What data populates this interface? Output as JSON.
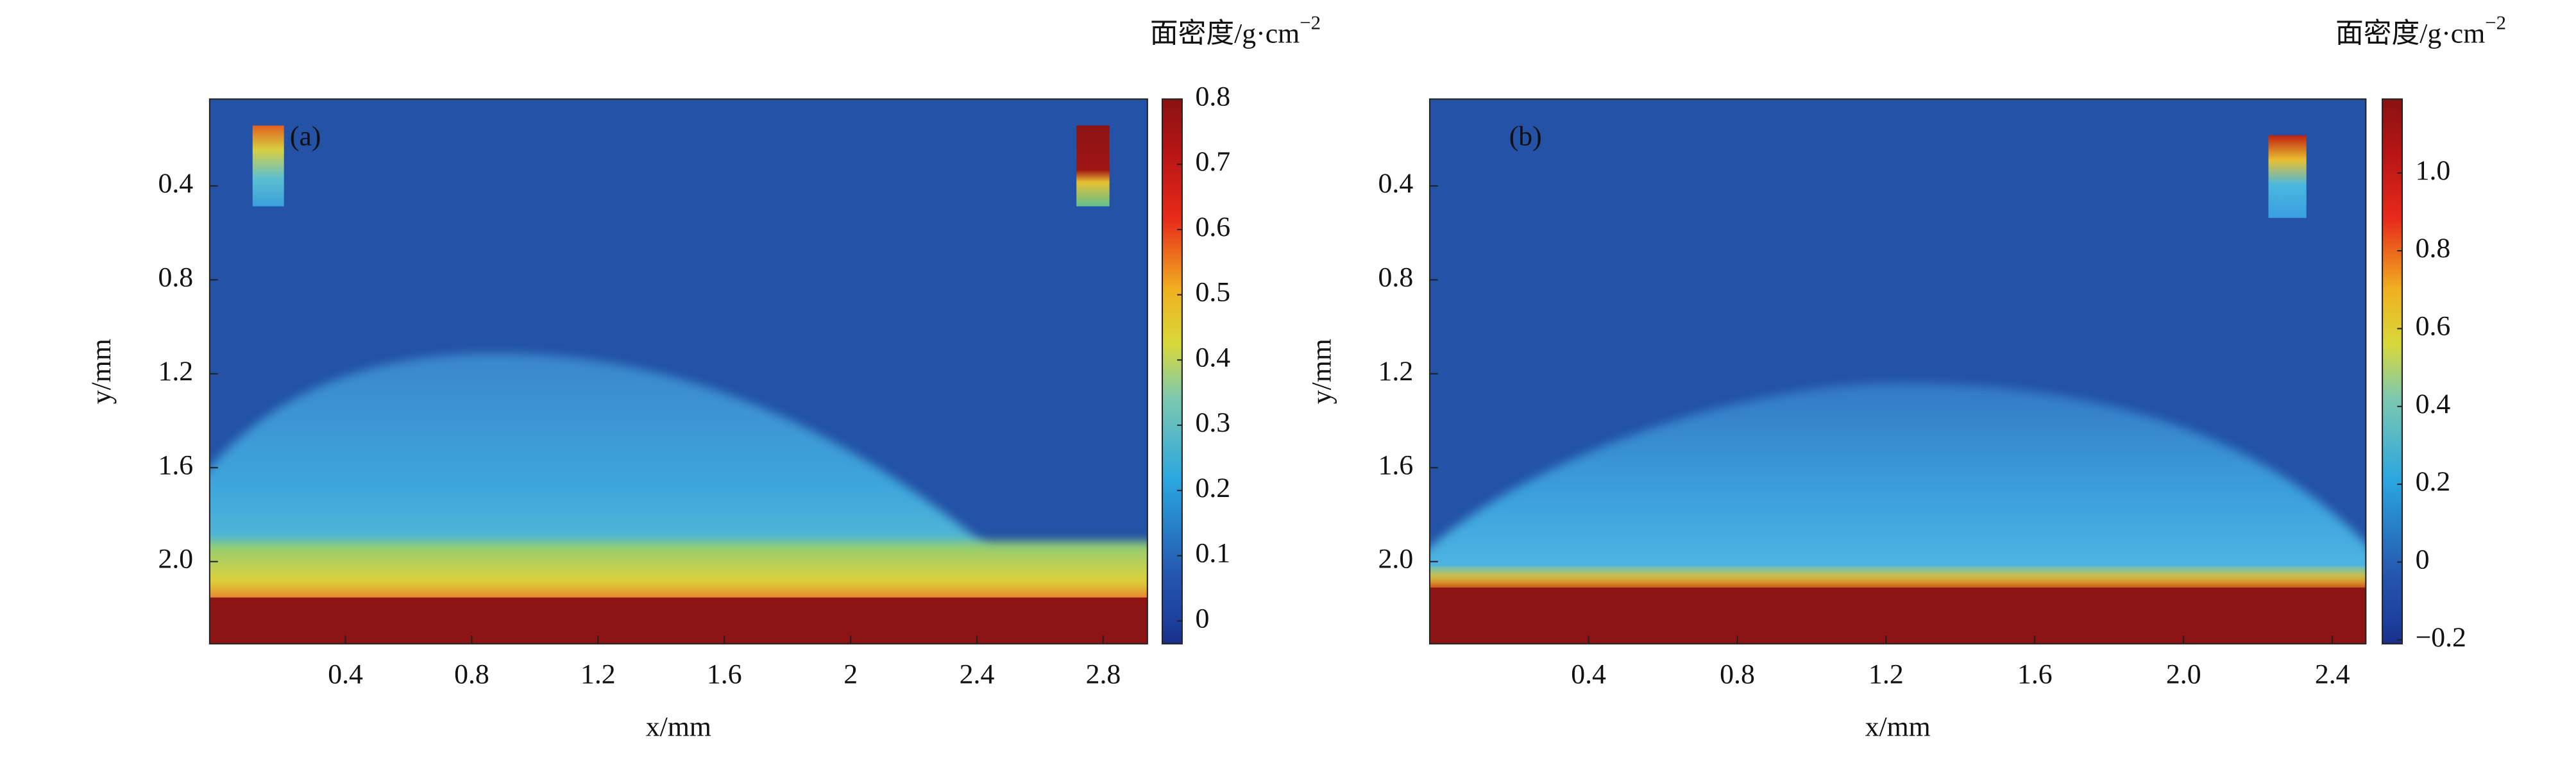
{
  "chart_data": [
    {
      "type": "heatmap",
      "panel_label": "(a)",
      "xlabel": "x/mm",
      "ylabel": "y/mm",
      "colorbar_label": "面密度/g·cm",
      "colorbar_label_exponent": "−2",
      "xlim": [
        -0.03,
        2.94
      ],
      "xticks": [
        0.4,
        0.8,
        1.2,
        1.6,
        2,
        2.4,
        2.8
      ],
      "ylim": [
        0.03,
        2.35
      ],
      "y_inverted": true,
      "yticks": [
        0.4,
        0.8,
        1.2,
        1.6,
        {
          "value": 2,
          "label": "2.0"
        }
      ],
      "clim": [
        -0.035,
        0.8
      ],
      "cticks": [
        0,
        0.1,
        0.2,
        0.3,
        0.4,
        0.5,
        0.6,
        0.7,
        0.8
      ]
    },
    {
      "type": "heatmap",
      "panel_label": "(b)",
      "xlabel": "x/mm",
      "ylabel": "y/mm",
      "colorbar_label": "面密度/g·cm",
      "colorbar_label_exponent": "−2",
      "xlim": [
        -0.027,
        2.49
      ],
      "xticks": [
        0.4,
        0.8,
        1.2,
        1.6,
        {
          "value": 2,
          "label": "2.0"
        },
        2.4
      ],
      "ylim": [
        0.03,
        2.35
      ],
      "y_inverted": true,
      "yticks": [
        0.4,
        0.8,
        1.2,
        1.6,
        {
          "value": 2,
          "label": "2.0"
        }
      ],
      "clim": [
        -0.21,
        1.19
      ],
      "cticks": [
        {
          "value": -0.2,
          "label": "−0.2"
        },
        0,
        0.2,
        0.4,
        0.6,
        0.8,
        {
          "value": 1,
          "label": "1.0"
        }
      ]
    }
  ]
}
